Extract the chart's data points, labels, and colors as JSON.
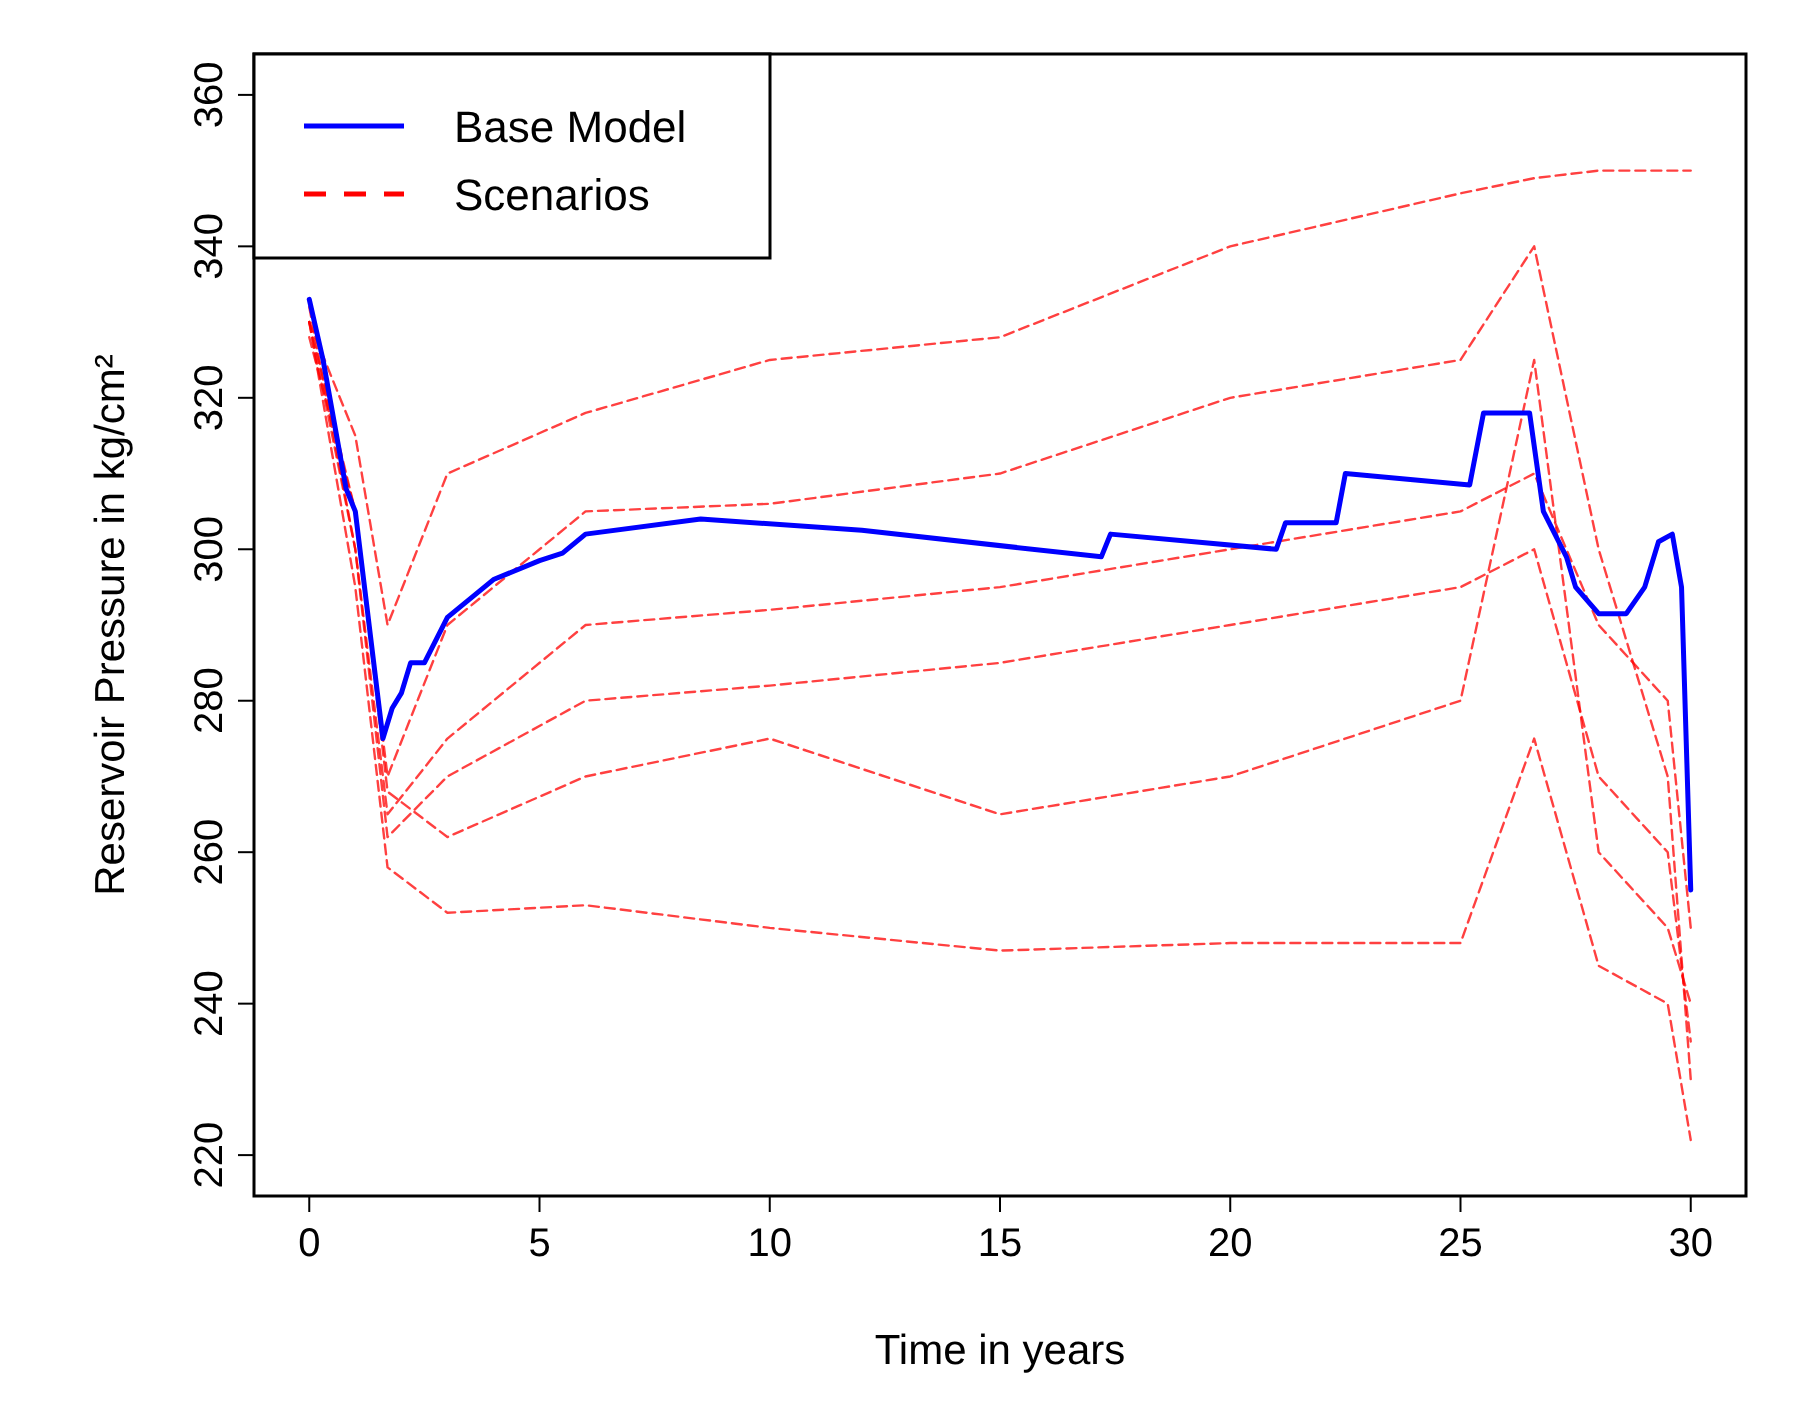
{
  "chart_data": {
    "type": "line",
    "xlabel": "Time in years",
    "ylabel": "Reservoir Pressure in kg/cm²",
    "xlim": [
      -1.2,
      31.2
    ],
    "ylim": [
      214.6,
      365.4
    ],
    "xticks": [
      0,
      5,
      10,
      15,
      20,
      25,
      30
    ],
    "yticks": [
      220,
      240,
      260,
      280,
      300,
      320,
      340,
      360
    ],
    "grid": false,
    "legend": "top left",
    "marker": "none",
    "series": [
      {
        "name": "Scenarios",
        "color": "#ff0000",
        "line_style": "dashed",
        "x": [
          0,
          1,
          1.7,
          3,
          6,
          10,
          15,
          20,
          25,
          26.6,
          28,
          29.5,
          30
        ],
        "values": [
          330,
          315,
          290,
          310,
          318,
          325,
          328,
          340,
          347,
          349,
          350,
          350,
          350
        ]
      },
      {
        "color": "#ff0000",
        "line_style": "dashed",
        "x": [
          0,
          1,
          1.7,
          3,
          6,
          10,
          15,
          20,
          25,
          26.6,
          28,
          29.5,
          30
        ],
        "values": [
          330,
          305,
          270,
          290,
          305,
          306,
          310,
          320,
          325,
          340,
          300,
          270,
          230
        ]
      },
      {
        "color": "#ff0000",
        "line_style": "dashed",
        "x": [
          0,
          1,
          1.7,
          3,
          6,
          10,
          15,
          20,
          25,
          26.6,
          28,
          29.5,
          30
        ],
        "values": [
          332,
          300,
          265,
          275,
          290,
          292,
          295,
          300,
          305,
          310,
          290,
          280,
          250
        ]
      },
      {
        "color": "#ff0000",
        "line_style": "dashed",
        "x": [
          0,
          1,
          1.7,
          3,
          6,
          10,
          15,
          20,
          25,
          26.6,
          28,
          29.5,
          30
        ],
        "values": [
          330,
          300,
          262,
          270,
          280,
          282,
          285,
          290,
          295,
          300,
          270,
          260,
          235
        ]
      },
      {
        "color": "#ff0000",
        "line_style": "dashed",
        "x": [
          0,
          1,
          1.7,
          3,
          6,
          10,
          15,
          20,
          25,
          26.6,
          28,
          29.5,
          30
        ],
        "values": [
          330,
          295,
          258,
          252,
          253,
          250,
          247,
          248,
          248,
          275,
          245,
          240,
          222
        ]
      },
      {
        "color": "#ff0000",
        "line_style": "dashed",
        "x": [
          0,
          1,
          1.7,
          3,
          6,
          10,
          15,
          20,
          25,
          26.6,
          28,
          29.5,
          30
        ],
        "values": [
          328,
          305,
          268,
          262,
          270,
          275,
          265,
          270,
          280,
          325,
          260,
          250,
          240
        ]
      },
      {
        "name": "Base Model",
        "color": "#0000ff",
        "line_style": "solid",
        "x": [
          0,
          0.3,
          0.8,
          1,
          1.6,
          1.8,
          2,
          2.2,
          2.5,
          3,
          4,
          5,
          5.5,
          6,
          8.5,
          12,
          17.2,
          17.4,
          21,
          21.2,
          22.3,
          22.5,
          25.2,
          25.5,
          26.5,
          26.8,
          27.3,
          27.5,
          28,
          28.6,
          29,
          29.3,
          29.6,
          29.8,
          30
        ],
        "values": [
          333,
          325,
          308,
          305,
          275,
          279,
          281,
          285,
          285,
          291,
          296,
          298.5,
          299.5,
          302,
          304,
          302.5,
          299,
          302,
          300,
          303.5,
          303.5,
          310,
          308.5,
          318,
          318,
          305,
          299,
          295,
          291.5,
          291.5,
          295,
          301,
          302,
          295,
          255
        ]
      }
    ]
  }
}
